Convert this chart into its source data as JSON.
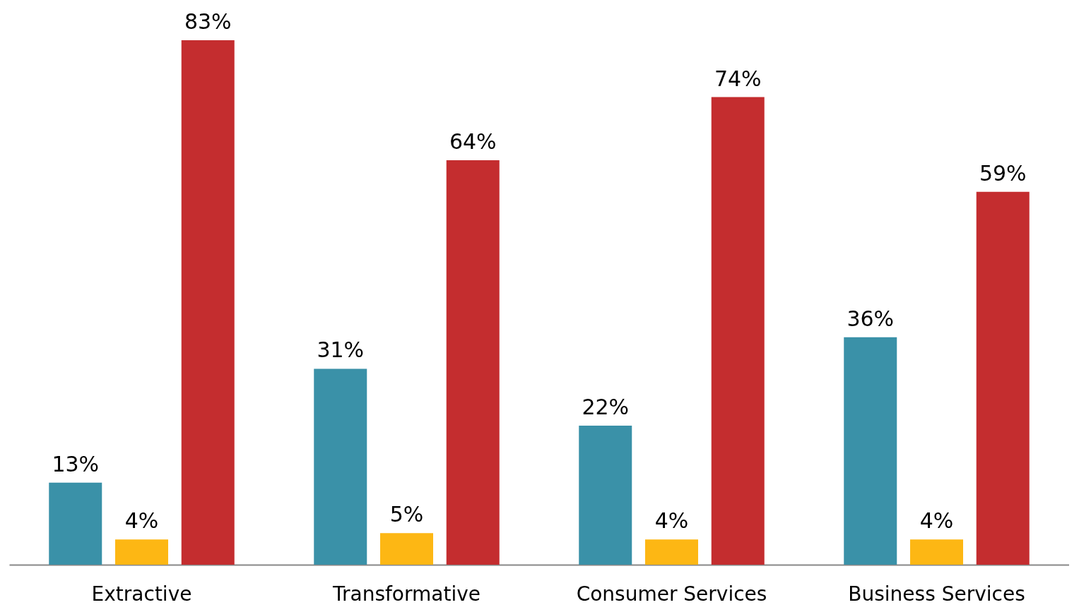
{
  "chart_data": {
    "type": "bar",
    "categories": [
      "Extractive",
      "Transformative",
      "Consumer Services",
      "Business Services"
    ],
    "series": [
      {
        "color": "#3a91a8",
        "values": [
          13,
          31,
          22,
          36
        ],
        "value_labels": [
          "13%",
          "31%",
          "22%",
          "36%"
        ]
      },
      {
        "color": "#fdb714",
        "values": [
          4,
          5,
          4,
          4
        ],
        "value_labels": [
          "4%",
          "5%",
          "4%",
          "4%"
        ]
      },
      {
        "color": "#c42d2f",
        "values": [
          83,
          64,
          74,
          59
        ],
        "value_labels": [
          "83%",
          "64%",
          "74%",
          "59%"
        ]
      }
    ],
    "grid": false,
    "legend": false
  }
}
